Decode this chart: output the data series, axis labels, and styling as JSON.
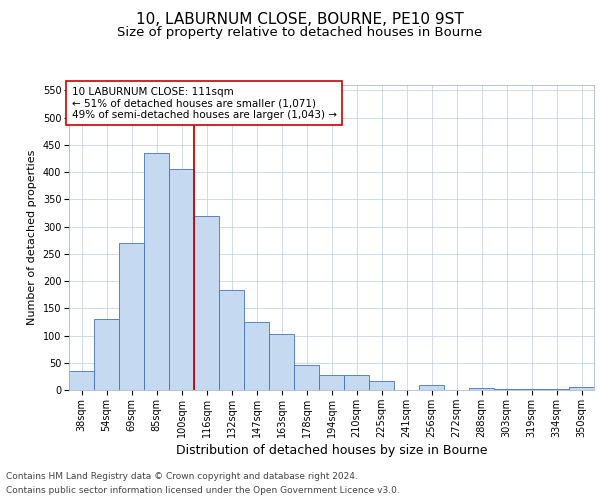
{
  "title1": "10, LABURNUM CLOSE, BOURNE, PE10 9ST",
  "title2": "Size of property relative to detached houses in Bourne",
  "xlabel": "Distribution of detached houses by size in Bourne",
  "ylabel": "Number of detached properties",
  "categories": [
    "38sqm",
    "54sqm",
    "69sqm",
    "85sqm",
    "100sqm",
    "116sqm",
    "132sqm",
    "147sqm",
    "163sqm",
    "178sqm",
    "194sqm",
    "210sqm",
    "225sqm",
    "241sqm",
    "256sqm",
    "272sqm",
    "288sqm",
    "303sqm",
    "319sqm",
    "334sqm",
    "350sqm"
  ],
  "values": [
    35,
    130,
    270,
    435,
    405,
    320,
    183,
    125,
    103,
    45,
    28,
    28,
    16,
    0,
    9,
    0,
    4,
    2,
    2,
    1,
    6
  ],
  "bar_color": "#c5d9f1",
  "bar_edge_color": "#4472c4",
  "grid_color": "#c8d4e8",
  "vline_x_index": 4.5,
  "vline_color": "#cc0000",
  "annotation_text": "10 LABURNUM CLOSE: 111sqm\n← 51% of detached houses are smaller (1,071)\n49% of semi-detached houses are larger (1,043) →",
  "annotation_box_color": "#ffffff",
  "annotation_box_edge_color": "#cc0000",
  "ylim": [
    0,
    560
  ],
  "yticks": [
    0,
    50,
    100,
    150,
    200,
    250,
    300,
    350,
    400,
    450,
    500,
    550
  ],
  "footer1": "Contains HM Land Registry data © Crown copyright and database right 2024.",
  "footer2": "Contains public sector information licensed under the Open Government Licence v3.0.",
  "bg_color": "#ffffff",
  "plot_bg_color": "#ffffff",
  "title1_fontsize": 11,
  "title2_fontsize": 9.5,
  "tick_fontsize": 7,
  "ylabel_fontsize": 8,
  "xlabel_fontsize": 9,
  "footer_fontsize": 6.5,
  "annotation_fontsize": 7.5
}
